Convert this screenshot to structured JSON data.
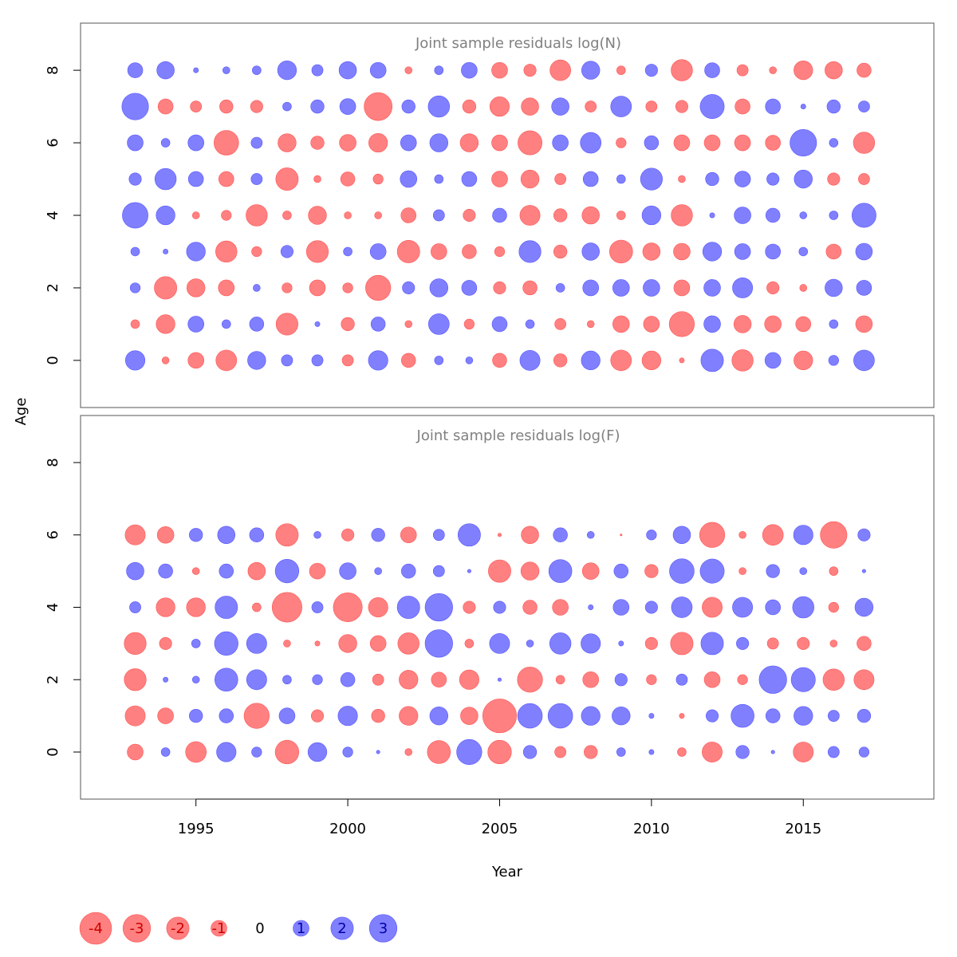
{
  "chart_data": {
    "type": "scatter",
    "subtype": "bubble",
    "xlabel": "Year",
    "ylabel": "Age",
    "xlim": [
      1991.2,
      2019.3
    ],
    "ylim": [
      -1.3,
      9.3
    ],
    "x_ticks": [
      1995,
      2000,
      2005,
      2010,
      2015
    ],
    "y_ticks": [
      0,
      2,
      4,
      6,
      8
    ],
    "years": [
      1993,
      1994,
      1995,
      1996,
      1997,
      1998,
      1999,
      2000,
      2001,
      2002,
      2003,
      2004,
      2005,
      2006,
      2007,
      2008,
      2009,
      2010,
      2011,
      2012,
      2013,
      2014,
      2015,
      2016,
      2017
    ],
    "colors": {
      "negative": "#ff8080",
      "positive": "#8080ff",
      "negative_edge": "#ff5555",
      "positive_edge": "#5555ff"
    },
    "legend": {
      "values": [
        -4,
        -3,
        -2,
        -1,
        0,
        1,
        2,
        3
      ],
      "labels": [
        "-4",
        "-3",
        "-2",
        "-1",
        "0",
        "1",
        "2",
        "3"
      ]
    },
    "panels": [
      {
        "title": "Joint sample residuals log(N)",
        "ages": [
          0,
          1,
          2,
          3,
          4,
          5,
          6,
          7,
          8
        ],
        "residuals": [
          [
            1.5,
            -0.2,
            -1.0,
            -1.7,
            1.3,
            0.5,
            0.5,
            -0.5,
            1.5,
            -0.8,
            0.3,
            0.2,
            -0.8,
            1.6,
            -0.7,
            1.4,
            -1.7,
            -1.4,
            -0.1,
            2.0,
            -1.8,
            1.0,
            -1.4,
            0.4,
            1.7
          ],
          [
            -0.3,
            -1.4,
            1.0,
            0.3,
            0.8,
            -1.9,
            0.1,
            -0.7,
            0.8,
            -0.2,
            1.7,
            -0.4,
            0.9,
            0.3,
            -0.5,
            -0.2,
            -1.1,
            -1.0,
            -2.5,
            1.1,
            -1.2,
            -1.1,
            -0.9,
            0.3,
            -1.1
          ],
          [
            0.4,
            -2.0,
            -1.3,
            -1.0,
            0.2,
            -0.4,
            -1.0,
            -0.4,
            -2.5,
            0.6,
            1.3,
            0.9,
            -0.6,
            -0.8,
            0.3,
            1.0,
            1.1,
            1.1,
            -1.0,
            1.1,
            1.6,
            -0.6,
            -0.2,
            1.2,
            0.9
          ],
          [
            0.3,
            0.1,
            1.4,
            -1.8,
            -0.4,
            0.6,
            -1.9,
            0.3,
            1.0,
            -2.0,
            -1.0,
            -0.8,
            -0.4,
            1.9,
            -0.7,
            1.2,
            -2.1,
            -1.2,
            -1.1,
            1.4,
            1.0,
            0.9,
            0.3,
            -0.9,
            1.1
          ],
          [
            2.6,
            1.4,
            -0.2,
            -0.4,
            -1.8,
            -0.3,
            -1.3,
            -0.2,
            -0.2,
            -0.9,
            0.5,
            -0.6,
            0.8,
            -1.6,
            -0.7,
            -1.2,
            -0.3,
            1.4,
            -1.8,
            0.1,
            1.1,
            0.8,
            0.2,
            0.3,
            2.3
          ],
          [
            0.6,
            1.8,
            0.9,
            -0.9,
            0.5,
            -2.0,
            -0.2,
            -0.8,
            -0.4,
            1.1,
            0.3,
            0.9,
            -1.0,
            -1.3,
            -0.5,
            0.9,
            0.3,
            1.9,
            -0.2,
            0.7,
            1.0,
            0.6,
            1.3,
            -0.6,
            -0.5
          ],
          [
            1.0,
            0.3,
            1.0,
            -2.4,
            0.5,
            -1.3,
            -0.7,
            -1.1,
            -1.4,
            1.0,
            1.3,
            -1.3,
            -1.0,
            -2.3,
            1.0,
            1.7,
            -0.4,
            0.8,
            -1.0,
            -1.0,
            -1.0,
            -0.9,
            2.8,
            0.3,
            -1.8
          ],
          [
            2.8,
            -0.9,
            -0.5,
            -0.7,
            -0.6,
            0.3,
            0.7,
            1.0,
            -3.1,
            0.7,
            1.8,
            -0.7,
            -1.5,
            -1.2,
            1.2,
            -0.5,
            1.7,
            -0.5,
            -0.6,
            2.3,
            -0.9,
            0.9,
            0.1,
            0.7,
            0.5
          ],
          [
            0.9,
            1.2,
            0.1,
            0.2,
            0.3,
            1.4,
            0.5,
            1.2,
            1.0,
            -0.2,
            0.3,
            1.0,
            -1.0,
            -0.6,
            -1.7,
            1.3,
            -0.3,
            0.6,
            -1.8,
            0.9,
            -0.5,
            -0.2,
            -1.4,
            -1.2,
            -0.8
          ]
        ]
      },
      {
        "title": "Joint sample residuals log(F)",
        "ages": [
          0,
          1,
          2,
          3,
          4,
          5,
          6
        ],
        "residuals": [
          [
            -1.0,
            0.3,
            -1.7,
            1.5,
            0.4,
            -2.2,
            1.4,
            0.4,
            0.05,
            -0.2,
            -2.1,
            2.5,
            -2.2,
            0.7,
            -0.5,
            -0.7,
            0.3,
            0.1,
            -0.3,
            -1.6,
            0.7,
            0.05,
            -1.6,
            0.5,
            0.4
          ],
          [
            -1.6,
            -1.0,
            0.7,
            0.8,
            -2.5,
            1.0,
            -0.6,
            1.5,
            -0.7,
            -1.4,
            1.3,
            -1.2,
            -4.5,
            2.4,
            2.4,
            1.4,
            1.3,
            0.1,
            -0.1,
            0.6,
            2.1,
            0.8,
            1.4,
            0.5,
            0.7
          ],
          [
            -1.9,
            0.1,
            0.2,
            2.1,
            1.6,
            0.3,
            0.4,
            0.8,
            -0.5,
            -1.4,
            -0.9,
            -1.5,
            0.05,
            -2.5,
            -0.3,
            -1.0,
            0.6,
            -0.4,
            0.5,
            -1.0,
            -0.4,
            3.0,
            2.3,
            -1.8,
            -1.6
          ],
          [
            -1.9,
            -0.6,
            0.3,
            2.2,
            1.6,
            -0.2,
            -0.1,
            -1.3,
            -1.0,
            -1.8,
            3.0,
            -0.3,
            1.6,
            0.2,
            1.8,
            1.5,
            0.1,
            -0.6,
            -2.0,
            2.0,
            0.6,
            -0.5,
            -0.6,
            -0.2,
            -0.8
          ],
          [
            0.5,
            -1.4,
            -1.4,
            2.0,
            -0.3,
            -3.5,
            0.5,
            -3.3,
            -1.5,
            2.0,
            3.0,
            -0.6,
            0.6,
            -0.8,
            -1.0,
            0.1,
            1.0,
            0.6,
            1.7,
            -1.6,
            1.6,
            0.9,
            1.8,
            -0.4,
            1.3
          ],
          [
            1.2,
            0.8,
            -0.2,
            0.8,
            -1.2,
            2.2,
            -1.0,
            1.1,
            0.2,
            0.8,
            0.5,
            0.05,
            -2.0,
            -1.3,
            2.1,
            -1.1,
            0.8,
            -0.7,
            2.4,
            2.3,
            -0.2,
            0.7,
            0.2,
            -0.3,
            0.05
          ],
          [
            -1.6,
            -1.1,
            0.7,
            1.2,
            0.8,
            -2.0,
            0.2,
            -0.6,
            0.7,
            -1.0,
            0.5,
            2.0,
            -0.05,
            -1.2,
            0.8,
            0.2,
            -0.01,
            0.4,
            1.2,
            -2.5,
            -0.2,
            -1.7,
            1.5,
            -2.8,
            0.6
          ]
        ]
      }
    ]
  }
}
